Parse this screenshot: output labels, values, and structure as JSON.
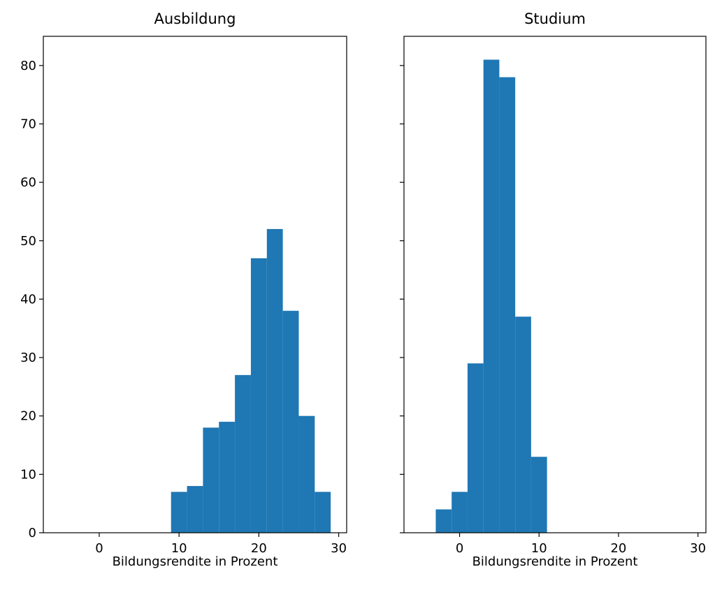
{
  "chart_data": [
    {
      "type": "histogram",
      "title": "Ausbildung",
      "x_label": "Bildungsrendite in Prozent",
      "bins": [
        9,
        11,
        13,
        15,
        17,
        19,
        21,
        23,
        25,
        27,
        29
      ],
      "values": [
        7,
        8,
        18,
        19,
        27,
        47,
        52,
        38,
        20,
        7
      ],
      "color": "#1f77b4",
      "xlim": [
        -7,
        31
      ],
      "xticks": [
        0,
        10,
        20,
        30
      ],
      "ylim": [
        0,
        85
      ],
      "yticks": [
        0,
        10,
        20,
        30,
        40,
        50,
        60,
        70,
        80
      ]
    },
    {
      "type": "histogram",
      "title": "Studium",
      "x_label": "Bildungsrendite in Prozent",
      "bins": [
        -3,
        -1,
        1,
        3,
        5,
        7,
        9,
        11
      ],
      "values": [
        4,
        7,
        29,
        81,
        78,
        37,
        13
      ],
      "color": "#1f77b4",
      "xlim": [
        -7,
        31
      ],
      "xticks": [
        0,
        10,
        20,
        30
      ],
      "ylim": [
        0,
        85
      ],
      "yticks": [
        0,
        10,
        20,
        30,
        40,
        50,
        60,
        70,
        80
      ]
    }
  ]
}
